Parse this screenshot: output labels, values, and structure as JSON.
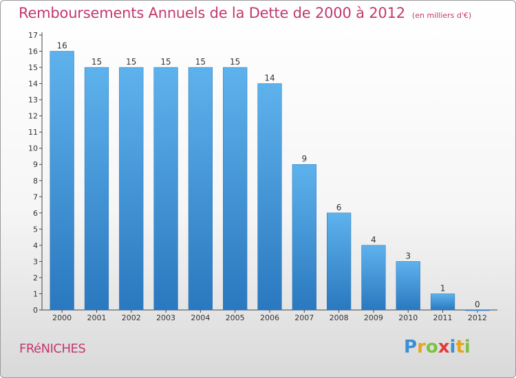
{
  "header": {
    "title": "Remboursements Annuels de la Dette de 2000 à 2012",
    "subtitle": "(en milliers d'€)"
  },
  "footer": {
    "commune": "FRéNICHES",
    "logo": {
      "letters": [
        "P",
        "r",
        "o",
        "x",
        "i",
        "t",
        "i"
      ],
      "colors": [
        "#3a8fd6",
        "#e8a41c",
        "#7cc242",
        "#e23a3a",
        "#3a8fd6",
        "#e8a41c",
        "#7cc242"
      ]
    }
  },
  "chart_data": {
    "type": "bar",
    "title": "Remboursements Annuels de la Dette de 2000 à 2012",
    "subtitle": "(en milliers d'€)",
    "categories": [
      "2000",
      "2001",
      "2002",
      "2003",
      "2004",
      "2005",
      "2006",
      "2007",
      "2008",
      "2009",
      "2010",
      "2011",
      "2012"
    ],
    "values": [
      16,
      15,
      15,
      15,
      15,
      15,
      14,
      9,
      6,
      4,
      3,
      1,
      0
    ],
    "ylim": [
      0,
      17
    ],
    "yticks": [
      0,
      1,
      2,
      3,
      4,
      5,
      6,
      7,
      8,
      9,
      10,
      11,
      12,
      13,
      14,
      15,
      16,
      17
    ],
    "grid": false,
    "bar_color": "#2f86cc"
  }
}
